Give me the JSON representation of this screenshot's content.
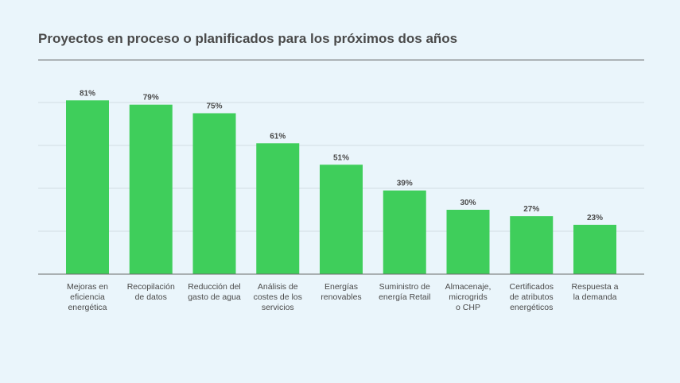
{
  "chart_data": {
    "type": "bar",
    "title": "Proyectos en proceso o planificados para los próximos dos años",
    "xlabel": "",
    "ylabel": "",
    "ylim": [
      0,
      100
    ],
    "grid": true,
    "value_suffix": "%",
    "categories": [
      [
        "Mejoras en",
        "eficiencia",
        "energética"
      ],
      [
        "Recopilación",
        "de datos"
      ],
      [
        "Reducción del",
        "gasto de agua"
      ],
      [
        "Análisis de",
        "costes de los",
        "servicios"
      ],
      [
        "Energías",
        "renovables"
      ],
      [
        "Suministro de",
        "energía Retail"
      ],
      [
        "Almacenaje,",
        "microgrids",
        "o CHP"
      ],
      [
        "Certificados",
        "de atributos",
        "energéticos"
      ],
      [
        "Respuesta a",
        "la demanda"
      ]
    ],
    "values": [
      81,
      79,
      75,
      61,
      51,
      39,
      30,
      27,
      23
    ],
    "colors": {
      "bar": "#3fce5b",
      "background": "#eaf5fb",
      "text": "#4a4a4a"
    }
  }
}
